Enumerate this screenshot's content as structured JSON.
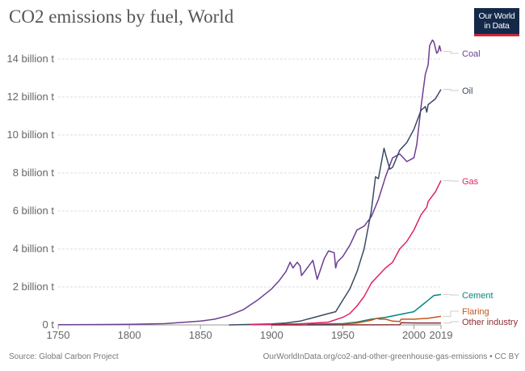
{
  "title": "CO2 emissions by fuel, World",
  "logo": {
    "line1": "Our World",
    "line2": "in Data"
  },
  "footer": {
    "source": "Source: Global Carbon Project",
    "url": "OurWorldInData.org/co2-and-other-greenhouse-gas-emissions • CC BY"
  },
  "chart_data": {
    "type": "line",
    "title": "CO2 emissions by fuel, World",
    "xlim": [
      1750,
      2019
    ],
    "ylim": [
      0,
      14
    ],
    "x_ticks": [
      {
        "value": 1750,
        "label": "1750"
      },
      {
        "value": 1800,
        "label": "1800"
      },
      {
        "value": 1850,
        "label": "1850"
      },
      {
        "value": 1900,
        "label": "1900"
      },
      {
        "value": 1950,
        "label": "1950"
      },
      {
        "value": 2000,
        "label": "2000"
      },
      {
        "value": 2019,
        "label": "2019"
      }
    ],
    "y_ticks": [
      {
        "value": 0,
        "label": "0 t"
      },
      {
        "value": 2,
        "label": "2 billion t"
      },
      {
        "value": 4,
        "label": "4 billion t"
      },
      {
        "value": 6,
        "label": "6 billion t"
      },
      {
        "value": 8,
        "label": "8 billion t"
      },
      {
        "value": 10,
        "label": "10 billion t"
      },
      {
        "value": 12,
        "label": "12 billion t"
      },
      {
        "value": 14,
        "label": "14 billion t"
      }
    ],
    "grid": "horizontal dotted",
    "legend": "right, line-end labels",
    "series": [
      {
        "name": "Coal",
        "color": "#6d3e91",
        "x": [
          1750,
          1800,
          1825,
          1850,
          1860,
          1870,
          1880,
          1890,
          1900,
          1905,
          1910,
          1913,
          1915,
          1918,
          1920,
          1921,
          1925,
          1929,
          1932,
          1937,
          1940,
          1944,
          1945,
          1946,
          1950,
          1955,
          1960,
          1965,
          1970,
          1975,
          1980,
          1985,
          1990,
          1995,
          2000,
          2002,
          2005,
          2008,
          2010,
          2011,
          2013,
          2014,
          2016,
          2017,
          2018,
          2019
        ],
        "y": [
          0.01,
          0.03,
          0.07,
          0.2,
          0.3,
          0.5,
          0.8,
          1.3,
          1.9,
          2.3,
          2.8,
          3.3,
          3.0,
          3.3,
          3.1,
          2.6,
          3.0,
          3.4,
          2.4,
          3.5,
          3.9,
          3.8,
          3.0,
          3.3,
          3.6,
          4.2,
          5.0,
          5.2,
          5.7,
          6.6,
          7.8,
          8.8,
          9.0,
          8.6,
          8.8,
          9.5,
          11.5,
          13.2,
          13.7,
          14.7,
          15.0,
          14.9,
          14.3,
          14.4,
          14.7,
          14.4
        ]
      },
      {
        "name": "Oil",
        "color": "#3b4a63",
        "x": [
          1870,
          1900,
          1910,
          1920,
          1930,
          1940,
          1945,
          1950,
          1955,
          1960,
          1965,
          1970,
          1973,
          1975,
          1979,
          1980,
          1983,
          1985,
          1990,
          1995,
          2000,
          2005,
          2008,
          2009,
          2010,
          2015,
          2019
        ],
        "y": [
          0.0,
          0.05,
          0.1,
          0.2,
          0.4,
          0.6,
          0.7,
          1.3,
          1.9,
          2.8,
          4.0,
          6.0,
          7.8,
          7.7,
          9.3,
          9.0,
          8.2,
          8.3,
          9.2,
          9.6,
          10.3,
          11.3,
          11.5,
          11.2,
          11.6,
          11.9,
          12.4
        ]
      },
      {
        "name": "Gas",
        "color": "#e0226b",
        "x": [
          1885,
          1900,
          1920,
          1930,
          1940,
          1950,
          1955,
          1960,
          1965,
          1970,
          1975,
          1980,
          1985,
          1990,
          1995,
          2000,
          2005,
          2009,
          2010,
          2015,
          2019
        ],
        "y": [
          0.01,
          0.02,
          0.06,
          0.1,
          0.15,
          0.4,
          0.6,
          1.0,
          1.5,
          2.2,
          2.6,
          3.0,
          3.3,
          4.0,
          4.4,
          5.0,
          5.8,
          6.2,
          6.5,
          7.0,
          7.6
        ]
      },
      {
        "name": "Cement",
        "color": "#00877f",
        "x": [
          1925,
          1950,
          1960,
          1970,
          1980,
          1990,
          2000,
          2005,
          2010,
          2014,
          2019
        ],
        "y": [
          0.03,
          0.07,
          0.15,
          0.3,
          0.4,
          0.55,
          0.7,
          1.0,
          1.3,
          1.55,
          1.6
        ]
      },
      {
        "name": "Flaring",
        "color": "#c4561a",
        "x": [
          1950,
          1960,
          1970,
          1974,
          1976,
          1980,
          1985,
          1990,
          1991,
          2000,
          2010,
          2019
        ],
        "y": [
          0.05,
          0.1,
          0.25,
          0.35,
          0.3,
          0.3,
          0.2,
          0.18,
          0.3,
          0.3,
          0.35,
          0.45
        ]
      },
      {
        "name": "Other industry",
        "color": "#8c2c35",
        "x": [
          1900,
          1990,
          1991,
          2000,
          2010,
          2019
        ],
        "y": [
          0.0,
          0.01,
          0.12,
          0.1,
          0.1,
          0.1
        ]
      }
    ]
  }
}
